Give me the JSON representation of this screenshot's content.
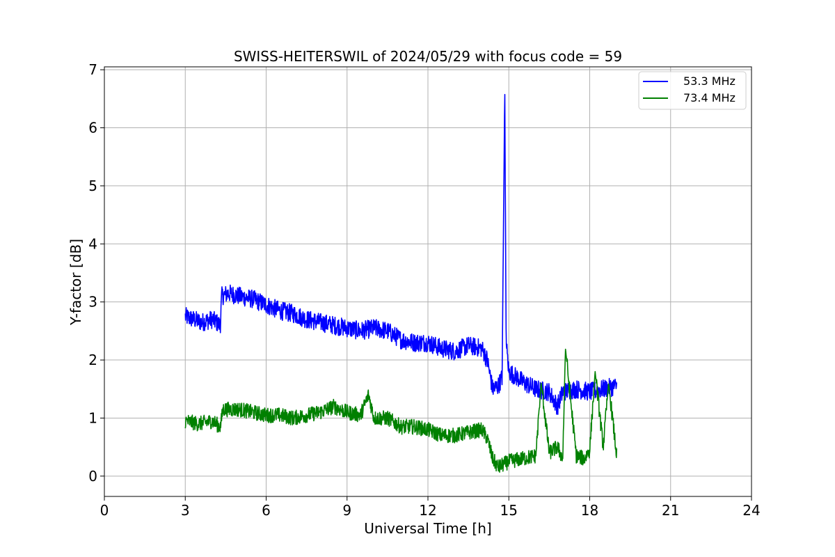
{
  "chart_data": {
    "type": "line",
    "title": "SWISS-HEITERSWIL of 2024/05/29 with focus code = 59",
    "xlabel": "Universal Time [h]",
    "ylabel": "Y-factor [dB]",
    "xlim": [
      0,
      24
    ],
    "ylim": [
      -0.35,
      7.05
    ],
    "xticks": [
      0,
      3,
      6,
      9,
      12,
      15,
      18,
      21,
      24
    ],
    "yticks": [
      0,
      1,
      2,
      3,
      4,
      5,
      6,
      7
    ],
    "grid": true,
    "legend_position": "top-right",
    "series": [
      {
        "name": "53.3 MHz",
        "color": "#0000ff",
        "x": [
          3.0,
          3.3,
          3.6,
          4.0,
          4.3,
          4.35,
          4.6,
          5.0,
          5.5,
          6.0,
          6.5,
          7.0,
          7.5,
          8.0,
          8.5,
          9.0,
          9.5,
          10.0,
          10.5,
          11.0,
          11.5,
          12.0,
          12.5,
          13.0,
          13.5,
          14.0,
          14.2,
          14.4,
          14.6,
          14.75,
          14.85,
          14.9,
          15.0,
          15.3,
          15.6,
          16.0,
          16.5,
          16.8,
          17.0,
          17.5,
          18.0,
          18.5,
          19.0
        ],
        "y": [
          2.75,
          2.7,
          2.65,
          2.7,
          2.6,
          3.1,
          3.15,
          3.1,
          3.05,
          2.95,
          2.85,
          2.8,
          2.7,
          2.65,
          2.6,
          2.55,
          2.5,
          2.55,
          2.5,
          2.35,
          2.3,
          2.3,
          2.2,
          2.15,
          2.25,
          2.2,
          2.0,
          1.5,
          1.55,
          1.7,
          6.7,
          2.3,
          1.8,
          1.7,
          1.6,
          1.5,
          1.45,
          1.2,
          1.45,
          1.5,
          1.45,
          1.5,
          1.55
        ]
      },
      {
        "name": "73.4 MHz",
        "color": "#008000",
        "x": [
          3.0,
          3.5,
          4.0,
          4.3,
          4.4,
          5.0,
          5.5,
          6.0,
          6.5,
          7.0,
          7.5,
          8.0,
          8.5,
          9.0,
          9.5,
          9.8,
          10.0,
          10.5,
          11.0,
          11.5,
          12.0,
          12.5,
          13.0,
          13.5,
          14.0,
          14.2,
          14.4,
          14.6,
          15.0,
          15.5,
          16.0,
          16.2,
          16.5,
          16.8,
          17.0,
          17.1,
          17.5,
          17.8,
          18.0,
          18.2,
          18.5,
          18.7,
          19.0
        ],
        "y": [
          0.95,
          0.9,
          0.95,
          0.85,
          1.15,
          1.15,
          1.1,
          1.05,
          1.05,
          1.0,
          1.05,
          1.1,
          1.2,
          1.1,
          1.05,
          1.4,
          1.0,
          1.0,
          0.85,
          0.85,
          0.8,
          0.7,
          0.7,
          0.75,
          0.8,
          0.65,
          0.3,
          0.15,
          0.25,
          0.3,
          0.35,
          1.6,
          0.4,
          0.5,
          0.3,
          2.2,
          0.35,
          0.3,
          0.45,
          1.8,
          0.5,
          1.6,
          0.35
        ]
      }
    ]
  }
}
